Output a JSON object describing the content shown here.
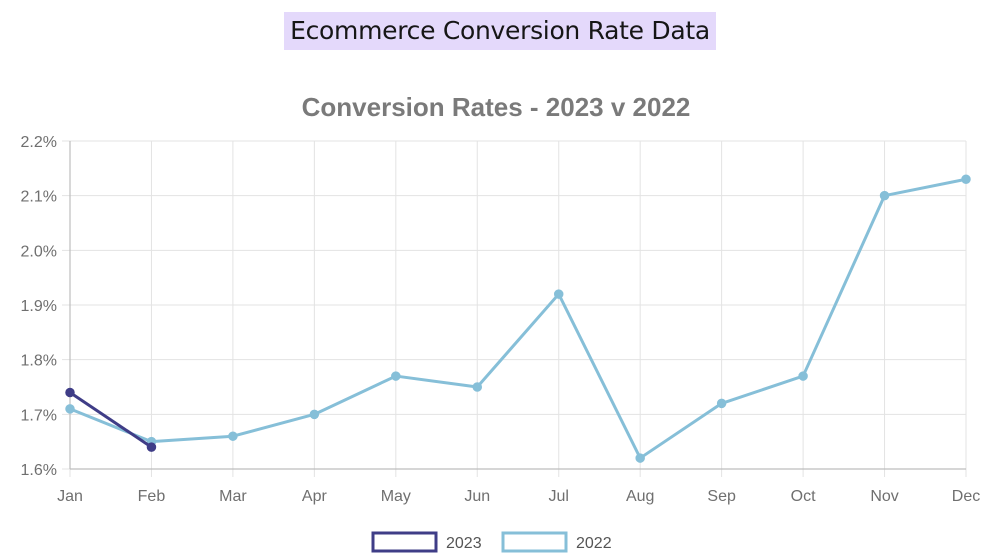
{
  "page": {
    "heading": "Ecommerce Conversion Rate Data"
  },
  "chart_data": {
    "type": "line",
    "title": "Conversion Rates - 2023 v 2022",
    "xlabel": "",
    "ylabel": "",
    "categories": [
      "Jan",
      "Feb",
      "Mar",
      "Apr",
      "May",
      "Jun",
      "Jul",
      "Aug",
      "Sep",
      "Oct",
      "Nov",
      "Dec"
    ],
    "ylim": [
      1.6,
      2.2
    ],
    "yticks": [
      1.6,
      1.7,
      1.8,
      1.9,
      2.0,
      2.1,
      2.2
    ],
    "ytick_labels": [
      "1.6%",
      "1.7%",
      "1.8%",
      "1.9%",
      "2.0%",
      "2.1%",
      "2.2%"
    ],
    "grid": true,
    "legend_position": "bottom",
    "series": [
      {
        "name": "2023",
        "color": "#3f3d87",
        "values": [
          1.74,
          1.64,
          null,
          null,
          null,
          null,
          null,
          null,
          null,
          null,
          null,
          null
        ]
      },
      {
        "name": "2022",
        "color": "#86bfd8",
        "values": [
          1.71,
          1.65,
          1.66,
          1.7,
          1.77,
          1.75,
          1.92,
          1.62,
          1.72,
          1.77,
          2.1,
          2.13
        ]
      }
    ]
  }
}
